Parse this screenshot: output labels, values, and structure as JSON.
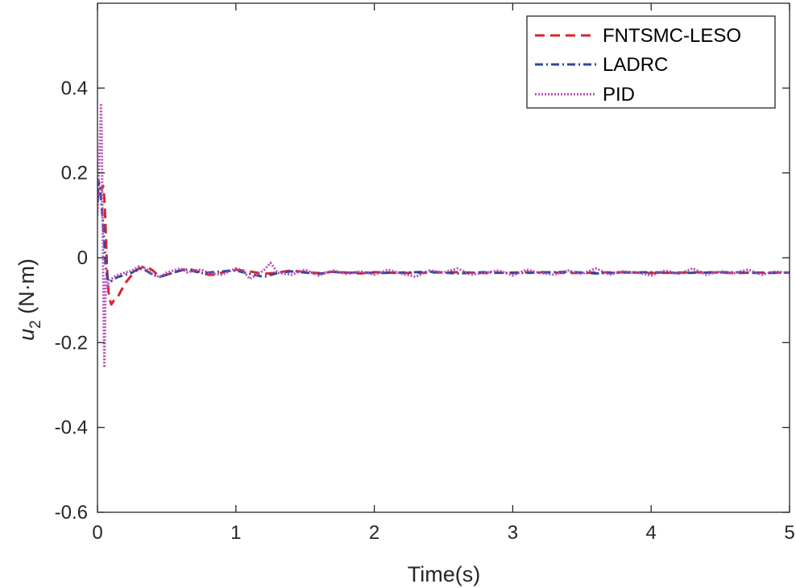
{
  "chart_data": {
    "type": "line",
    "xlabel": "Time(s)",
    "ylabel_main": "u",
    "ylabel_sub": "2",
    "ylabel_unit": " (N·m)",
    "xlim": [
      0,
      5
    ],
    "ylim": [
      -0.6,
      0.6
    ],
    "xticks": [
      0,
      1,
      2,
      3,
      4,
      5
    ],
    "xtick_labels": [
      "0",
      "1",
      "2",
      "3",
      "4",
      "5"
    ],
    "yticks": [
      -0.6,
      -0.4,
      -0.2,
      0,
      0.2,
      0.4
    ],
    "ytick_labels": [
      "-0.6",
      "-0.4",
      "-0.2",
      "0",
      "0.2",
      "0.4"
    ],
    "grid": false,
    "legend_position": "top-right",
    "series": [
      {
        "name": "FNTSMC-LESO",
        "color": "#d7262b",
        "dash": "dashed",
        "x": [
          0,
          0.01,
          0.02,
          0.03,
          0.04,
          0.05,
          0.06,
          0.07,
          0.08,
          0.09,
          0.1,
          0.12,
          0.15,
          0.2,
          0.25,
          0.3,
          0.35,
          0.4,
          0.45,
          0.5,
          0.55,
          0.6,
          0.65,
          0.7,
          0.75,
          0.8,
          0.85,
          0.9,
          0.95,
          1.0,
          1.1,
          1.2,
          1.3,
          1.4,
          1.5,
          1.6,
          1.7,
          1.8,
          1.9,
          2.0,
          2.2,
          2.4,
          2.6,
          2.8,
          3.0,
          3.2,
          3.4,
          3.6,
          3.8,
          4.0,
          4.2,
          4.4,
          4.6,
          4.8,
          5.0
        ],
        "y": [
          0.14,
          0.17,
          0.17,
          0.16,
          0.17,
          0.14,
          0.06,
          -0.03,
          -0.08,
          -0.1,
          -0.11,
          -0.1,
          -0.09,
          -0.06,
          -0.04,
          -0.025,
          -0.02,
          -0.03,
          -0.045,
          -0.04,
          -0.035,
          -0.03,
          -0.025,
          -0.03,
          -0.035,
          -0.04,
          -0.04,
          -0.035,
          -0.03,
          -0.028,
          -0.032,
          -0.038,
          -0.035,
          -0.03,
          -0.034,
          -0.036,
          -0.033,
          -0.035,
          -0.037,
          -0.034,
          -0.036,
          -0.035,
          -0.034,
          -0.036,
          -0.035,
          -0.034,
          -0.036,
          -0.035,
          -0.034,
          -0.036,
          -0.035,
          -0.034,
          -0.036,
          -0.035,
          -0.035
        ]
      },
      {
        "name": "LADRC",
        "color": "#34479b",
        "dash": "dashdot",
        "x": [
          0,
          0.01,
          0.02,
          0.03,
          0.04,
          0.05,
          0.06,
          0.07,
          0.08,
          0.1,
          0.12,
          0.15,
          0.2,
          0.25,
          0.3,
          0.35,
          0.4,
          0.45,
          0.5,
          0.55,
          0.6,
          0.65,
          0.7,
          0.75,
          0.8,
          0.9,
          1.0,
          1.1,
          1.2,
          1.3,
          1.4,
          1.5,
          1.6,
          1.7,
          1.8,
          1.9,
          2.0,
          2.2,
          2.4,
          2.6,
          2.8,
          3.0,
          3.2,
          3.4,
          3.6,
          3.8,
          4.0,
          4.2,
          4.4,
          4.6,
          4.8,
          5.0
        ],
        "y": [
          0.13,
          0.18,
          0.16,
          0.12,
          0.08,
          0.03,
          -0.02,
          -0.045,
          -0.055,
          -0.055,
          -0.05,
          -0.045,
          -0.04,
          -0.035,
          -0.025,
          -0.03,
          -0.04,
          -0.045,
          -0.04,
          -0.035,
          -0.03,
          -0.028,
          -0.032,
          -0.036,
          -0.035,
          -0.032,
          -0.03,
          -0.038,
          -0.045,
          -0.036,
          -0.032,
          -0.035,
          -0.038,
          -0.033,
          -0.036,
          -0.034,
          -0.036,
          -0.035,
          -0.033,
          -0.037,
          -0.034,
          -0.036,
          -0.035,
          -0.033,
          -0.037,
          -0.035,
          -0.034,
          -0.036,
          -0.035,
          -0.034,
          -0.036,
          -0.035
        ]
      },
      {
        "name": "PID",
        "color": "#b84fb9",
        "dash": "dotted",
        "x": [
          0,
          0.01,
          0.02,
          0.025,
          0.03,
          0.035,
          0.04,
          0.045,
          0.05,
          0.055,
          0.06,
          0.07,
          0.08,
          0.1,
          0.12,
          0.15,
          0.2,
          0.25,
          0.3,
          0.35,
          0.4,
          0.45,
          0.5,
          0.55,
          0.6,
          0.65,
          0.7,
          0.75,
          0.8,
          0.9,
          1.0,
          1.05,
          1.1,
          1.2,
          1.25,
          1.3,
          1.4,
          1.5,
          1.6,
          1.7,
          1.8,
          1.9,
          2.0,
          2.1,
          2.2,
          2.3,
          2.4,
          2.5,
          2.6,
          2.7,
          2.8,
          2.9,
          3.0,
          3.1,
          3.2,
          3.3,
          3.4,
          3.5,
          3.6,
          3.7,
          3.8,
          3.9,
          4.0,
          4.1,
          4.2,
          4.3,
          4.4,
          4.5,
          4.6,
          4.7,
          4.8,
          4.9,
          5.0
        ],
        "y": [
          0.1,
          0.2,
          0.3,
          0.36,
          0.3,
          0.15,
          0.0,
          -0.15,
          -0.255,
          -0.15,
          -0.05,
          -0.07,
          -0.06,
          -0.05,
          -0.045,
          -0.04,
          -0.035,
          -0.03,
          -0.02,
          -0.025,
          -0.04,
          -0.045,
          -0.035,
          -0.03,
          -0.025,
          -0.035,
          -0.03,
          -0.028,
          -0.036,
          -0.04,
          -0.025,
          -0.03,
          -0.05,
          -0.03,
          -0.012,
          -0.035,
          -0.04,
          -0.028,
          -0.042,
          -0.03,
          -0.038,
          -0.032,
          -0.04,
          -0.028,
          -0.038,
          -0.045,
          -0.03,
          -0.035,
          -0.025,
          -0.04,
          -0.035,
          -0.03,
          -0.042,
          -0.028,
          -0.036,
          -0.04,
          -0.03,
          -0.038,
          -0.025,
          -0.04,
          -0.032,
          -0.035,
          -0.042,
          -0.03,
          -0.038,
          -0.025,
          -0.04,
          -0.032,
          -0.036,
          -0.028,
          -0.04,
          -0.032,
          -0.036
        ]
      }
    ]
  }
}
